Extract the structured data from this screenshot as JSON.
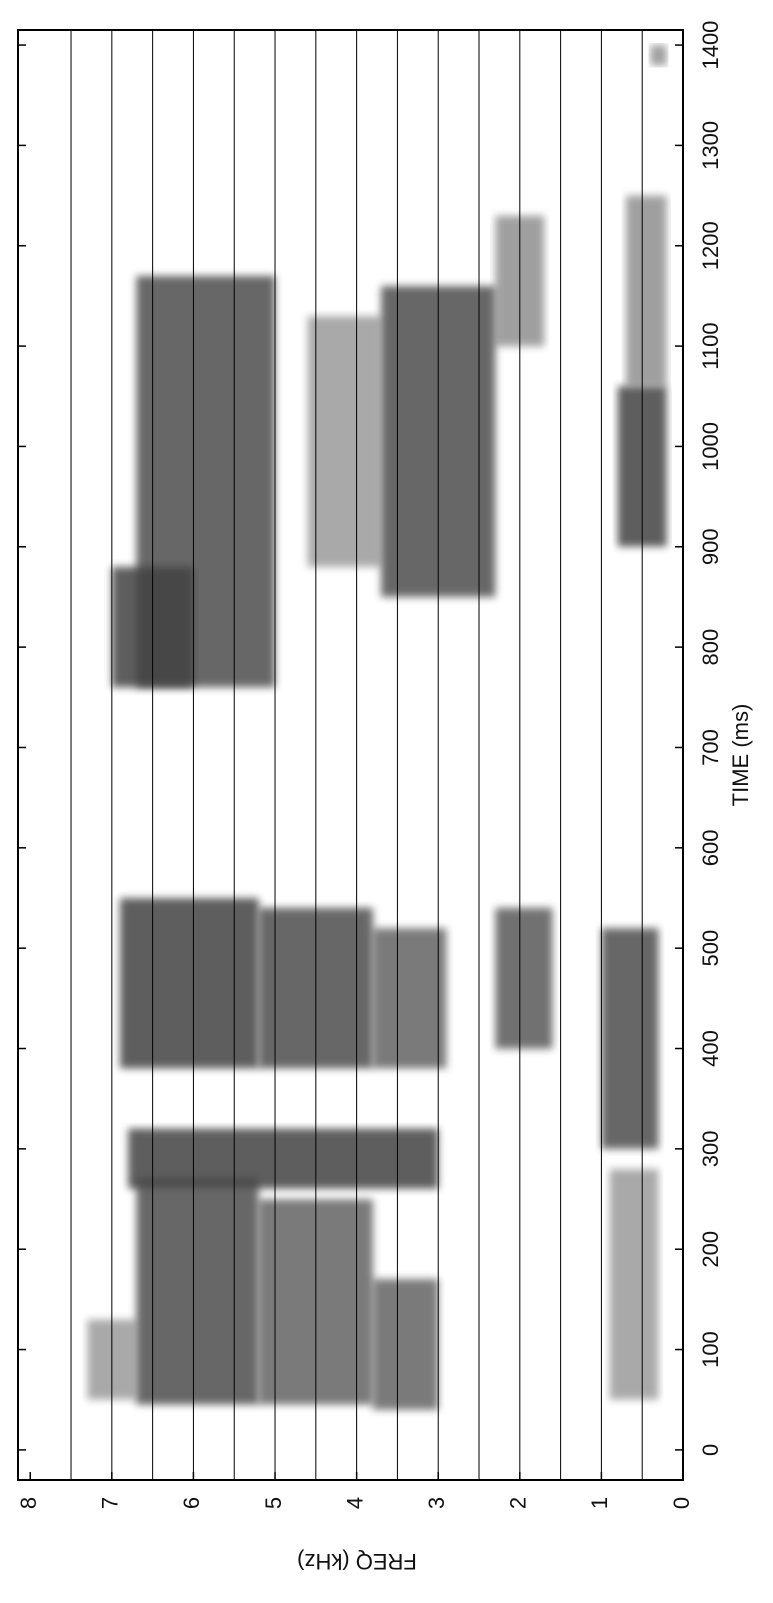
{
  "chart_data": {
    "type": "spectrogram",
    "xlabel": "TIME (ms)",
    "ylabel": "FREQ (kHz)",
    "xlim": [
      -30,
      1415
    ],
    "ylim": [
      0,
      8.15
    ],
    "xticks": [
      0,
      100,
      200,
      300,
      400,
      500,
      600,
      700,
      800,
      900,
      1000,
      1100,
      1200,
      1300,
      1400
    ],
    "yticks": [
      0,
      1,
      2,
      3,
      4,
      5,
      6,
      7,
      8
    ],
    "ygrid": [
      0.5,
      1,
      1.5,
      2,
      2.5,
      3,
      3.5,
      4,
      4.5,
      5,
      5.5,
      6,
      6.5,
      7,
      7.5
    ],
    "color": "#1a1a1a",
    "regions": [
      {
        "t": [
          45,
          270
        ],
        "f": [
          5.2,
          6.7
        ],
        "intensity": 0.8
      },
      {
        "t": [
          45,
          250
        ],
        "f": [
          3.8,
          5.2
        ],
        "intensity": 0.7
      },
      {
        "t": [
          40,
          170
        ],
        "f": [
          3.0,
          3.8
        ],
        "intensity": 0.7
      },
      {
        "t": [
          50,
          130
        ],
        "f": [
          6.7,
          7.3
        ],
        "intensity": 0.45
      },
      {
        "t": [
          50,
          280
        ],
        "f": [
          0.3,
          0.9
        ],
        "intensity": 0.45
      },
      {
        "t": [
          260,
          320
        ],
        "f": [
          3.0,
          6.8
        ],
        "intensity": 0.85
      },
      {
        "t": [
          300,
          520
        ],
        "f": [
          0.3,
          1.0
        ],
        "intensity": 0.8
      },
      {
        "t": [
          380,
          550
        ],
        "f": [
          5.2,
          6.9
        ],
        "intensity": 0.85
      },
      {
        "t": [
          380,
          540
        ],
        "f": [
          3.8,
          5.2
        ],
        "intensity": 0.8
      },
      {
        "t": [
          380,
          520
        ],
        "f": [
          2.9,
          3.8
        ],
        "intensity": 0.7
      },
      {
        "t": [
          400,
          540
        ],
        "f": [
          1.6,
          2.3
        ],
        "intensity": 0.75
      },
      {
        "t": [
          760,
          880
        ],
        "f": [
          6.0,
          7.0
        ],
        "intensity": 0.85
      },
      {
        "t": [
          760,
          1170
        ],
        "f": [
          5.0,
          6.7
        ],
        "intensity": 0.8
      },
      {
        "t": [
          850,
          1160
        ],
        "f": [
          2.3,
          3.7
        ],
        "intensity": 0.8
      },
      {
        "t": [
          880,
          1130
        ],
        "f": [
          3.7,
          4.6
        ],
        "intensity": 0.45
      },
      {
        "t": [
          900,
          1060
        ],
        "f": [
          0.2,
          0.8
        ],
        "intensity": 0.85
      },
      {
        "t": [
          1060,
          1250
        ],
        "f": [
          0.2,
          0.7
        ],
        "intensity": 0.5
      },
      {
        "t": [
          1100,
          1230
        ],
        "f": [
          1.7,
          2.3
        ],
        "intensity": 0.5
      },
      {
        "t": [
          1380,
          1400
        ],
        "f": [
          0.2,
          0.4
        ],
        "intensity": 0.5
      }
    ]
  }
}
